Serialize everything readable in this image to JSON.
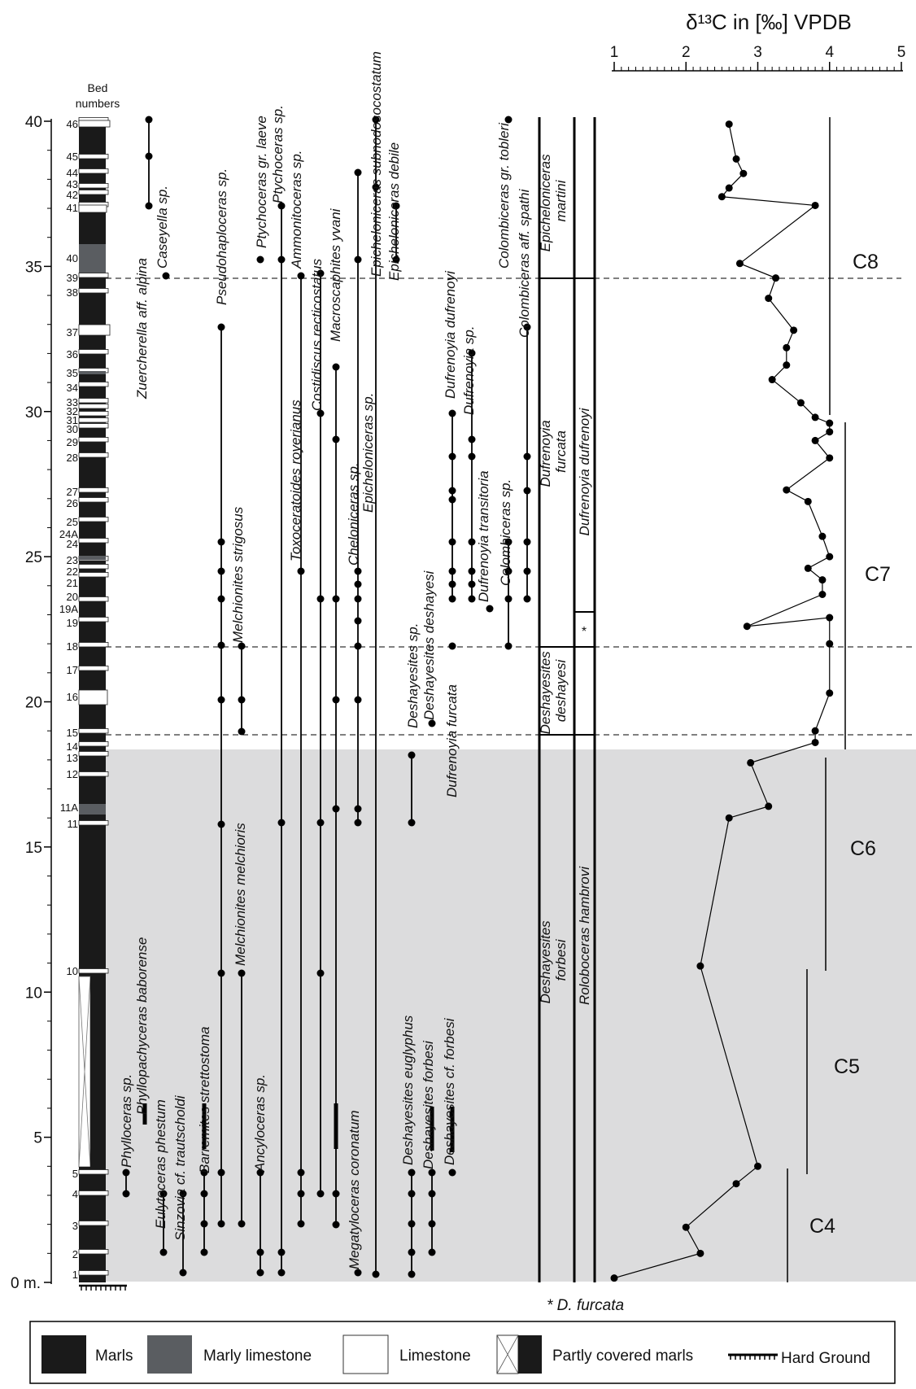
{
  "d13c_title": "δ¹³C in [‰] VPDB",
  "d13c_ticks": [
    "1",
    "2",
    "3",
    "4",
    "5"
  ],
  "depth_ticks": [
    "40",
    "35",
    "30",
    "25",
    "20",
    "15",
    "10",
    "5",
    "0 m."
  ],
  "bed_header": [
    "Bed",
    "numbers"
  ],
  "beds": [
    "46",
    "45",
    "44",
    "43",
    "42",
    "41",
    "40",
    "39",
    "38",
    "37",
    "36",
    "35",
    "34",
    "33",
    "32",
    "31",
    "30",
    "29",
    "28",
    "27",
    "26",
    "25",
    "24A",
    "24",
    "23",
    "22",
    "21",
    "20",
    "19A",
    "19",
    "18",
    "17",
    "16",
    "15",
    "14",
    "13",
    "12",
    "11A",
    "11",
    "10",
    "5",
    "4",
    "3",
    "2",
    "1"
  ],
  "taxa": [
    "Zuercherella aff. alpina",
    "Caseyella sp.",
    "Pseudohaploceras sp.",
    "Ptychoceras gr. laeve",
    "Ptychoceras sp.",
    "Ammonitoceras sp.",
    "Toxoceratoides royerianus",
    "Costidiscus recticostatus",
    "Macroscaphites yvani",
    "Cheloniceras sp.",
    "Epicheloniceras sp.",
    "Epicheloniceras subnodosocostatum",
    "Epicheloniceras debile",
    "Melchionites strigosus",
    "Deshayesites sp.",
    "Deshayesites deshayesi",
    "Dufrenoyia furcata",
    "Dufrenoyia dufrenoyi",
    "Dufrenoyia sp.",
    "Dufrenoyia transitoria",
    "Colombiceras sp.",
    "Colombiceras gr. tobleri",
    "Colombiceras aff. spathi",
    "Melchionites melchioris",
    "Phylloceras sp.",
    "Phyllopachyceras baborense",
    "Eulytoceras phestum",
    "Sinzovia cf. trautscholdi",
    "Barremites strettostoma",
    "Ancyloceras sp.",
    "Megatyloceras coronatum",
    "Deshayesites euglyphus",
    "Deshayesites forbesi",
    "Deshayesites cf. forbesi"
  ],
  "zones": [
    "Epicheloniceras martini",
    "Dufrenoyia furcata",
    "Dufrenoyia dufrenoyi",
    "Deshayesites deshayesi",
    "Deshayesites forbesi",
    "Roloboceras hambrovi"
  ],
  "zone_star": "*",
  "chemo_segments": [
    "C8",
    "C7",
    "C6",
    "C5",
    "C4"
  ],
  "footnote": "* D. furcata",
  "legend": [
    "Marls",
    "Marly limestone",
    "Limestone",
    "Partly covered marls",
    "Hard Ground"
  ],
  "colors": {
    "marl": "#1a1a1a",
    "marly_limestone": "#5a5d61",
    "limestone": "#ffffff",
    "shade": "#dcdcdd"
  },
  "chart_data": {
    "type": "scatter",
    "xlabel": "δ¹³C in [‰] VPDB",
    "xlim": [
      1,
      5
    ],
    "ylim": [
      0,
      40
    ],
    "points": [
      [
        1.0,
        0.15
      ],
      [
        2.2,
        1.0
      ],
      [
        2.0,
        1.9
      ],
      [
        2.7,
        3.4
      ],
      [
        3.0,
        4.0
      ],
      [
        2.2,
        10.9
      ],
      [
        2.6,
        16.0
      ],
      [
        3.15,
        16.4
      ],
      [
        2.9,
        17.9
      ],
      [
        3.8,
        18.6
      ],
      [
        3.8,
        19.0
      ],
      [
        4.0,
        20.3
      ],
      [
        4.0,
        22.0
      ],
      [
        4.0,
        22.9
      ],
      [
        2.85,
        22.6
      ],
      [
        3.9,
        23.7
      ],
      [
        3.9,
        24.2
      ],
      [
        3.7,
        24.6
      ],
      [
        4.0,
        25.0
      ],
      [
        3.9,
        25.7
      ],
      [
        3.7,
        26.9
      ],
      [
        3.4,
        27.3
      ],
      [
        4.0,
        28.4
      ],
      [
        3.8,
        29.0
      ],
      [
        4.0,
        29.3
      ],
      [
        4.0,
        29.6
      ],
      [
        3.8,
        29.8
      ],
      [
        3.6,
        30.3
      ],
      [
        3.2,
        31.1
      ],
      [
        3.4,
        31.6
      ],
      [
        3.4,
        32.2
      ],
      [
        3.5,
        32.8
      ],
      [
        3.15,
        33.9
      ],
      [
        3.25,
        34.6
      ],
      [
        2.75,
        35.1
      ],
      [
        3.8,
        37.1
      ],
      [
        2.5,
        37.4
      ],
      [
        2.6,
        37.7
      ],
      [
        2.8,
        38.2
      ],
      [
        2.7,
        38.7
      ],
      [
        2.6,
        39.9
      ]
    ]
  }
}
